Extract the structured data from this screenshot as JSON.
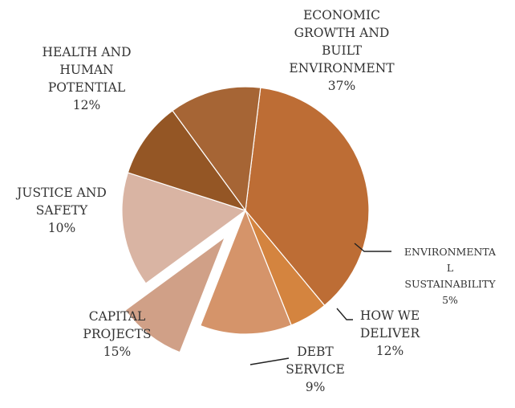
{
  "chart_data": {
    "type": "pie",
    "exploded": [
      "DEBT SERVICE"
    ],
    "slices": [
      {
        "key": "econ",
        "lines": [
          "ECONOMIC",
          "GROWTH AND",
          "BUILT",
          "ENVIRONMENT"
        ],
        "pct_label": "37%",
        "value": 37,
        "color": "#bd6d35"
      },
      {
        "key": "envsus",
        "lines": [
          "ENVIRONMENTA",
          "L",
          "SUSTAINABILITY"
        ],
        "pct_label": "5%",
        "value": 5,
        "color": "#d4843f"
      },
      {
        "key": "how",
        "lines": [
          "HOW WE",
          "DELIVER"
        ],
        "pct_label": "12%",
        "value": 12,
        "color": "#d5946a"
      },
      {
        "key": "debt",
        "lines": [
          "DEBT",
          "SERVICE"
        ],
        "pct_label": "9%",
        "value": 9,
        "color": "#d0a087"
      },
      {
        "key": "capital",
        "lines": [
          "CAPITAL",
          "PROJECTS"
        ],
        "pct_label": "15%",
        "value": 15,
        "color": "#d9b4a3"
      },
      {
        "key": "justice",
        "lines": [
          "JUSTICE AND",
          "SAFETY"
        ],
        "pct_label": "10%",
        "value": 10,
        "color": "#945625"
      },
      {
        "key": "health",
        "lines": [
          "HEALTH AND",
          "HUMAN",
          "POTENTIAL"
        ],
        "pct_label": "12%",
        "value": 12,
        "color": "#a66535"
      }
    ]
  }
}
